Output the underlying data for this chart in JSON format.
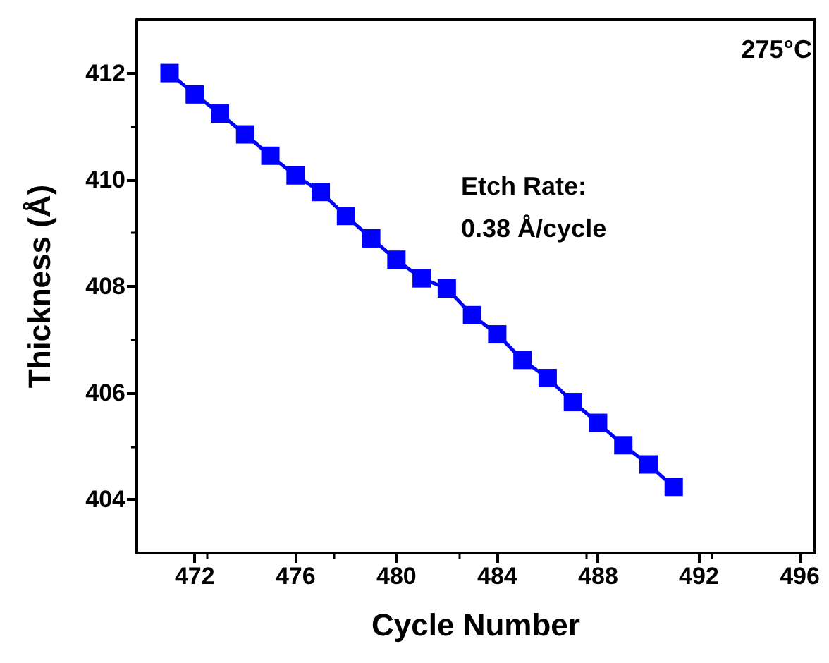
{
  "chart_data": {
    "type": "line",
    "xlabel": "Cycle Number",
    "ylabel": "Thickness (Å)",
    "annotations": [
      "275°C",
      "Etch Rate:\n0.38 Å/cycle"
    ],
    "x": [
      471,
      472,
      473,
      474,
      475,
      476,
      477,
      478,
      479,
      480,
      481,
      482,
      483,
      484,
      485,
      486,
      487,
      488,
      489,
      490,
      491
    ],
    "series": [
      {
        "color": "#0000ff",
        "values": [
          412.0,
          411.6,
          411.24,
          410.85,
          410.45,
          410.08,
          409.77,
          409.32,
          408.9,
          408.5,
          408.15,
          407.96,
          407.46,
          407.1,
          406.62,
          406.28,
          405.83,
          405.44,
          405.02,
          404.66,
          404.24
        ]
      }
    ],
    "xlim": [
      469.7,
      496.6
    ],
    "ylim": [
      403,
      413
    ],
    "xticks": [
      472,
      476,
      480,
      484,
      488,
      492,
      496
    ],
    "yticks": [
      404,
      406,
      408,
      410,
      412
    ],
    "grid": false,
    "marker": "square",
    "line_style": "solid"
  }
}
